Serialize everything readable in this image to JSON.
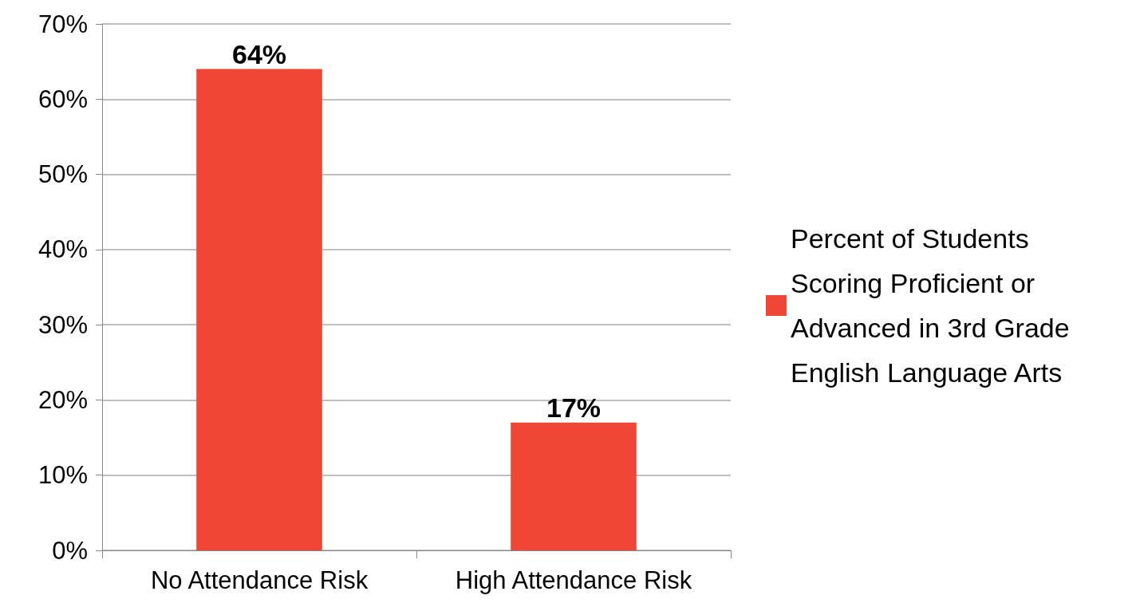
{
  "chart_data": {
    "type": "bar",
    "categories": [
      "No Attendance Risk",
      "High Attendance Risk"
    ],
    "series": [
      {
        "name": "Percent of Students Scoring Proficient or Advanced in 3rd Grade English Language Arts",
        "color": "#f04636",
        "values": [
          64,
          17
        ],
        "value_labels": [
          "64%",
          "17%"
        ]
      }
    ],
    "ylim": [
      0,
      70
    ],
    "yticks": [
      {
        "value": 0,
        "label": "0%"
      },
      {
        "value": 10,
        "label": "10%"
      },
      {
        "value": 20,
        "label": "20%"
      },
      {
        "value": 30,
        "label": "30%"
      },
      {
        "value": 40,
        "label": "40%"
      },
      {
        "value": 50,
        "label": "50%"
      },
      {
        "value": 60,
        "label": "60%"
      },
      {
        "value": 70,
        "label": "70%"
      }
    ],
    "grid": "y",
    "legend": "right"
  }
}
